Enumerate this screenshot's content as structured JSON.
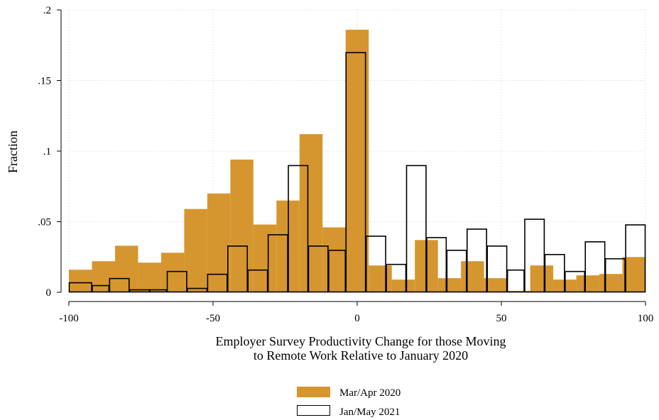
{
  "chart_data": {
    "type": "bar",
    "xlabel": [
      "Employer Survey Productivity Change for those Moving",
      "to Remote Work Relative to January 2020"
    ],
    "ylabel": "Fraction",
    "xlim": [
      -100,
      100
    ],
    "ylim": [
      0,
      0.2
    ],
    "xticks": [
      -100,
      -50,
      0,
      50,
      100
    ],
    "xtick_labels": [
      "-100",
      "-50",
      "0",
      "50",
      "100"
    ],
    "yticks": [
      0,
      0.05,
      0.1,
      0.15,
      0.2
    ],
    "ytick_labels": [
      "0",
      ".05",
      ".1",
      ".15",
      ".2"
    ],
    "grid": true,
    "legend_position": "bottom",
    "series": [
      {
        "name": "Mar/Apr 2020",
        "style": "filled",
        "color": "#D6962F",
        "bins": [
          {
            "x0": -100,
            "x1": -92,
            "value": 0.016
          },
          {
            "x0": -92,
            "x1": -84,
            "value": 0.022
          },
          {
            "x0": -84,
            "x1": -76,
            "value": 0.033
          },
          {
            "x0": -76,
            "x1": -68,
            "value": 0.021
          },
          {
            "x0": -68,
            "x1": -60,
            "value": 0.028
          },
          {
            "x0": -60,
            "x1": -52,
            "value": 0.059
          },
          {
            "x0": -52,
            "x1": -44,
            "value": 0.07
          },
          {
            "x0": -44,
            "x1": -36,
            "value": 0.094
          },
          {
            "x0": -36,
            "x1": -28,
            "value": 0.048
          },
          {
            "x0": -28,
            "x1": -20,
            "value": 0.065
          },
          {
            "x0": -20,
            "x1": -12,
            "value": 0.112
          },
          {
            "x0": -12,
            "x1": -4,
            "value": 0.046
          },
          {
            "x0": -4,
            "x1": 4,
            "value": 0.186
          },
          {
            "x0": 4,
            "x1": 12,
            "value": 0.019
          },
          {
            "x0": 12,
            "x1": 20,
            "value": 0.009
          },
          {
            "x0": 20,
            "x1": 28,
            "value": 0.037
          },
          {
            "x0": 28,
            "x1": 36,
            "value": 0.01
          },
          {
            "x0": 36,
            "x1": 44,
            "value": 0.022
          },
          {
            "x0": 44,
            "x1": 52,
            "value": 0.01
          },
          {
            "x0": 52,
            "x1": 60,
            "value": 0.001
          },
          {
            "x0": 60,
            "x1": 68,
            "value": 0.019
          },
          {
            "x0": 68,
            "x1": 76,
            "value": 0.009
          },
          {
            "x0": 76,
            "x1": 84,
            "value": 0.012
          },
          {
            "x0": 84,
            "x1": 92,
            "value": 0.013
          },
          {
            "x0": 92,
            "x1": 100,
            "value": 0.025
          }
        ]
      },
      {
        "name": "Jan/May 2021",
        "style": "outline",
        "color": "#000000",
        "bins": [
          {
            "x0": -100,
            "x1": -92,
            "value": 0.007
          },
          {
            "x0": -92,
            "x1": -86,
            "value": 0.005
          },
          {
            "x0": -86,
            "x1": -79,
            "value": 0.01
          },
          {
            "x0": -79,
            "x1": -72,
            "value": 0.002
          },
          {
            "x0": -72,
            "x1": -66,
            "value": 0.002
          },
          {
            "x0": -66,
            "x1": -59,
            "value": 0.015
          },
          {
            "x0": -59,
            "x1": -52,
            "value": 0.003
          },
          {
            "x0": -52,
            "x1": -45,
            "value": 0.013
          },
          {
            "x0": -45,
            "x1": -38,
            "value": 0.033
          },
          {
            "x0": -38,
            "x1": -31,
            "value": 0.016
          },
          {
            "x0": -31,
            "x1": -24,
            "value": 0.041
          },
          {
            "x0": -24,
            "x1": -17,
            "value": 0.09
          },
          {
            "x0": -17,
            "x1": -10,
            "value": 0.033
          },
          {
            "x0": -10,
            "x1": -4,
            "value": 0.03
          },
          {
            "x0": -4,
            "x1": 3,
            "value": 0.17
          },
          {
            "x0": 3,
            "x1": 10,
            "value": 0.04
          },
          {
            "x0": 10,
            "x1": 17,
            "value": 0.02
          },
          {
            "x0": 17,
            "x1": 24,
            "value": 0.09
          },
          {
            "x0": 24,
            "x1": 31,
            "value": 0.039
          },
          {
            "x0": 31,
            "x1": 38,
            "value": 0.03
          },
          {
            "x0": 38,
            "x1": 45,
            "value": 0.045
          },
          {
            "x0": 45,
            "x1": 52,
            "value": 0.033
          },
          {
            "x0": 52,
            "x1": 58,
            "value": 0.016
          },
          {
            "x0": 58,
            "x1": 65,
            "value": 0.052
          },
          {
            "x0": 65,
            "x1": 72,
            "value": 0.027
          },
          {
            "x0": 72,
            "x1": 79,
            "value": 0.015
          },
          {
            "x0": 79,
            "x1": 86,
            "value": 0.036
          },
          {
            "x0": 86,
            "x1": 93,
            "value": 0.024
          },
          {
            "x0": 93,
            "x1": 100,
            "value": 0.048
          }
        ]
      }
    ]
  }
}
